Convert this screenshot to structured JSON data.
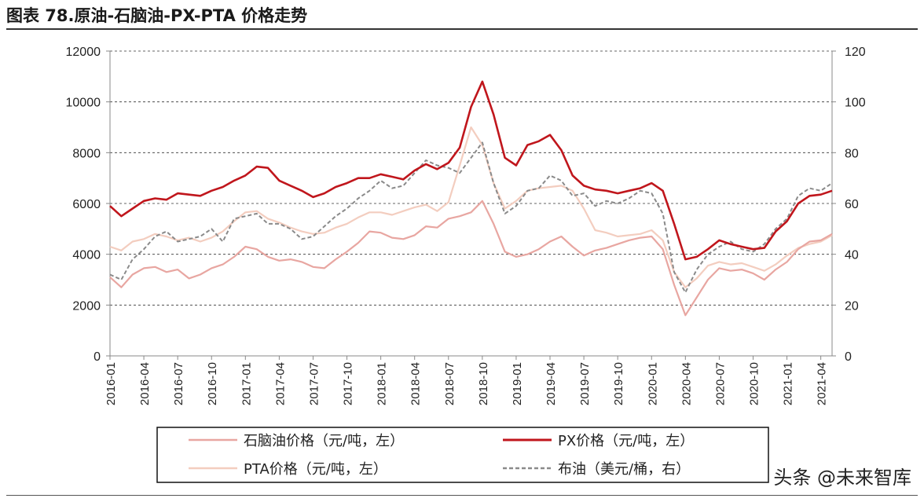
{
  "figure": {
    "title": "图表 78.原油-石脑油-PX-PTA 价格走势",
    "watermark": "头条 @未来智库"
  },
  "chart_data": {
    "type": "line",
    "title": "图表 78.原油-石脑油-PX-PTA 价格走势",
    "x_ticks": [
      "2016-01",
      "2016-04",
      "2016-07",
      "2016-10",
      "2017-01",
      "2017-04",
      "2017-07",
      "2017-10",
      "2018-01",
      "2018-04",
      "2018-07",
      "2018-10",
      "2019-01",
      "2019-04",
      "2019-07",
      "2019-10",
      "2020-01",
      "2020-04",
      "2020-07",
      "2020-10",
      "2021-01",
      "2021-04"
    ],
    "y_left": {
      "min": 0,
      "max": 12000,
      "ticks": [
        0,
        2000,
        4000,
        6000,
        8000,
        10000,
        12000
      ]
    },
    "y_right": {
      "min": 0,
      "max": 120,
      "ticks": [
        0,
        20,
        40,
        60,
        80,
        100,
        120
      ]
    },
    "grid": "horizontal dashed",
    "legend_position": "bottom",
    "x": [
      "2016-01",
      "2016-02",
      "2016-03",
      "2016-04",
      "2016-05",
      "2016-06",
      "2016-07",
      "2016-08",
      "2016-09",
      "2016-10",
      "2016-11",
      "2016-12",
      "2017-01",
      "2017-02",
      "2017-03",
      "2017-04",
      "2017-05",
      "2017-06",
      "2017-07",
      "2017-08",
      "2017-09",
      "2017-10",
      "2017-11",
      "2017-12",
      "2018-01",
      "2018-02",
      "2018-03",
      "2018-04",
      "2018-05",
      "2018-06",
      "2018-07",
      "2018-08",
      "2018-09",
      "2018-10",
      "2018-11",
      "2018-12",
      "2019-01",
      "2019-02",
      "2019-03",
      "2019-04",
      "2019-05",
      "2019-06",
      "2019-07",
      "2019-08",
      "2019-09",
      "2019-10",
      "2019-11",
      "2019-12",
      "2020-01",
      "2020-02",
      "2020-03",
      "2020-04",
      "2020-05",
      "2020-06",
      "2020-07",
      "2020-08",
      "2020-09",
      "2020-10",
      "2020-11",
      "2020-12",
      "2021-01",
      "2021-02",
      "2021-03",
      "2021-04",
      "2021-05"
    ],
    "series": [
      {
        "name": "石脑油价格（元/吨，左）",
        "axis": "left",
        "color": "#e8a6a1",
        "dash": "",
        "width": 2.2,
        "values": [
          3100,
          2700,
          3200,
          3450,
          3500,
          3300,
          3400,
          3050,
          3200,
          3450,
          3600,
          3900,
          4300,
          4200,
          3900,
          3750,
          3800,
          3700,
          3500,
          3450,
          3800,
          4100,
          4450,
          4900,
          4850,
          4650,
          4600,
          4750,
          5100,
          5050,
          5400,
          5500,
          5650,
          6100,
          5200,
          4100,
          3900,
          4000,
          4200,
          4500,
          4700,
          4300,
          3950,
          4150,
          4250,
          4400,
          4550,
          4650,
          4700,
          4200,
          2800,
          1600,
          2300,
          3000,
          3450,
          3350,
          3400,
          3250,
          3000,
          3400,
          3700,
          4200,
          4500,
          4550,
          4800
        ]
      },
      {
        "name": "PX价格（元/吨，左）",
        "axis": "left",
        "color": "#c0161c",
        "dash": "",
        "width": 2.6,
        "values": [
          5900,
          5500,
          5800,
          6100,
          6200,
          6150,
          6400,
          6350,
          6300,
          6500,
          6650,
          6900,
          7100,
          7450,
          7400,
          6900,
          6700,
          6500,
          6250,
          6400,
          6650,
          6800,
          7000,
          7000,
          7150,
          7050,
          6950,
          7300,
          7550,
          7350,
          7600,
          8200,
          9800,
          10800,
          9500,
          7800,
          7500,
          8300,
          8450,
          8700,
          8100,
          7100,
          6700,
          6550,
          6500,
          6400,
          6500,
          6600,
          6800,
          6500,
          5200,
          3800,
          3900,
          4200,
          4550,
          4400,
          4300,
          4200,
          4250,
          4900,
          5300,
          6000,
          6300,
          6350,
          6500
        ]
      },
      {
        "name": "PTA价格（元/吨，左）",
        "axis": "left",
        "color": "#f3cdbf",
        "dash": "",
        "width": 2.2,
        "values": [
          4300,
          4150,
          4500,
          4600,
          4800,
          4700,
          4550,
          4650,
          4500,
          4650,
          4900,
          5300,
          5650,
          5700,
          5400,
          5250,
          5050,
          4900,
          4800,
          4850,
          5050,
          5200,
          5450,
          5650,
          5650,
          5550,
          5700,
          5850,
          5950,
          5700,
          6050,
          7500,
          9000,
          8300,
          6800,
          5800,
          6100,
          6500,
          6600,
          6650,
          6700,
          6500,
          5800,
          4950,
          4850,
          4700,
          4750,
          4800,
          4950,
          4550,
          3300,
          2700,
          3050,
          3550,
          3700,
          3600,
          3650,
          3500,
          3350,
          3600,
          3950,
          4250,
          4400,
          4500,
          4750
        ]
      },
      {
        "name": "布油（美元/桶，右）",
        "axis": "right",
        "color": "#8a8a8a",
        "dash": "5 3",
        "width": 2.0,
        "values": [
          32,
          30,
          38,
          42,
          47,
          49,
          45,
          46,
          47,
          50,
          45,
          54,
          55,
          56,
          52,
          52,
          50,
          46,
          47,
          51,
          55,
          58,
          62,
          65,
          69,
          66,
          67,
          72,
          77,
          75,
          74,
          72,
          78,
          84,
          68,
          56,
          59,
          65,
          66,
          71,
          69,
          63,
          64,
          59,
          61,
          60,
          62,
          65,
          64,
          56,
          33,
          25,
          34,
          40,
          43,
          45,
          42,
          41,
          44,
          50,
          54,
          63,
          66,
          65,
          68
        ]
      }
    ]
  }
}
